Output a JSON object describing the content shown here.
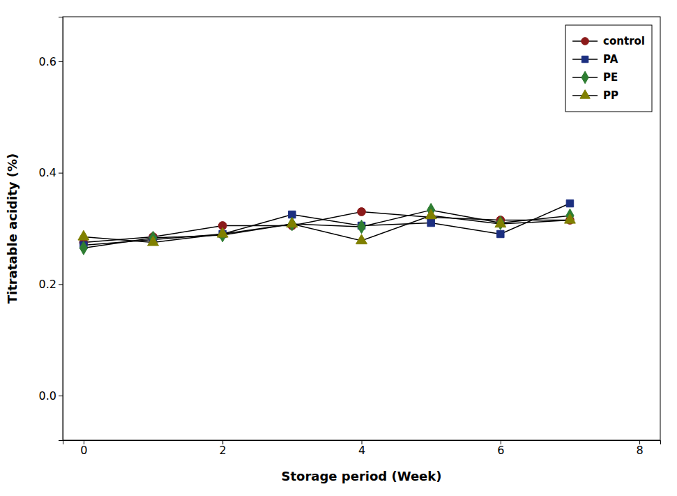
{
  "chart_data": {
    "type": "line",
    "xlabel": "Storage period (Week)",
    "ylabel": "Titratable acidity (%)",
    "x": [
      0,
      1,
      2,
      3,
      4,
      5,
      6,
      7
    ],
    "series": [
      {
        "name": "control",
        "color": "#8B1A1A",
        "marker": "circle",
        "values": [
          0.275,
          0.285,
          0.305,
          0.305,
          0.33,
          0.32,
          0.315,
          0.315
        ]
      },
      {
        "name": "PA",
        "color": "#1C2F80",
        "marker": "square",
        "values": [
          0.27,
          0.28,
          0.29,
          0.325,
          0.305,
          0.31,
          0.29,
          0.345
        ]
      },
      {
        "name": "PE",
        "color": "#2E7D32",
        "marker": "diamond",
        "values": [
          0.265,
          0.283,
          0.288,
          0.308,
          0.303,
          0.333,
          0.31,
          0.323
        ]
      },
      {
        "name": "PP",
        "color": "#808000",
        "marker": "triangle",
        "values": [
          0.285,
          0.275,
          0.29,
          0.308,
          0.278,
          0.323,
          0.308,
          0.315
        ]
      }
    ],
    "xlim": [
      -0.3,
      8.3
    ],
    "ylim": [
      -0.08,
      0.68
    ],
    "xticks": [
      0,
      2,
      4,
      6,
      8
    ],
    "yticks": [
      {
        "value": 0.0,
        "label": "0.0"
      },
      0.2,
      0.4,
      0.6
    ],
    "legend": "upper right",
    "grid": false
  }
}
